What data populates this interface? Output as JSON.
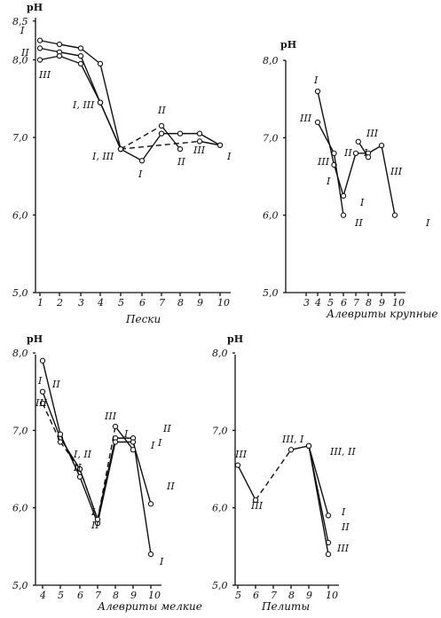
{
  "chart_data": [
    {
      "type": "line",
      "ylabel": "pH",
      "xlabel": "Пески",
      "x_ticks": [
        "1",
        "2",
        "3",
        "4",
        "5",
        "6",
        "7",
        "8",
        "9",
        "10"
      ],
      "y_ticks": [
        "5,0",
        "6,0",
        "7,0",
        "8,0",
        "8,5"
      ],
      "ylim": [
        5.0,
        8.5
      ],
      "xlim": [
        1,
        10
      ],
      "series": [
        {
          "name": "I",
          "x": [
            1,
            2,
            3,
            4,
            5,
            6,
            7,
            8,
            9,
            10
          ],
          "y": [
            8.25,
            8.2,
            8.15,
            7.95,
            6.85,
            6.7,
            7.05,
            7.05,
            7.05,
            6.9
          ]
        },
        {
          "name": "II",
          "x": [
            1,
            2,
            3,
            4,
            5,
            7,
            8
          ],
          "y": [
            8.15,
            8.1,
            8.05,
            7.45,
            6.85,
            7.15,
            6.85
          ]
        },
        {
          "name": "III",
          "x": [
            1,
            2,
            3,
            4,
            5,
            9,
            10
          ],
          "y": [
            8.0,
            8.05,
            7.95,
            7.45,
            6.85,
            6.95,
            6.9
          ]
        }
      ],
      "annotations": [
        "I",
        "II",
        "III",
        "I, III",
        "I, III",
        "II",
        "I",
        "II",
        "III",
        "I"
      ]
    },
    {
      "type": "line",
      "ylabel": "pH",
      "xlabel": "Алевриты крупные",
      "x_ticks": [
        "3",
        "4",
        "5",
        "6",
        "7",
        "8",
        "9",
        "10"
      ],
      "y_ticks": [
        "5,0",
        "6,0",
        "7,0",
        "8,0"
      ],
      "ylim": [
        5.0,
        8.0
      ],
      "xlim": [
        3,
        10
      ],
      "series": [
        {
          "name": "I",
          "x": [
            4,
            5.3,
            6,
            7,
            8,
            9,
            10
          ],
          "y": [
            7.6,
            6.65,
            6.25,
            6.8,
            6.8,
            6.9,
            6.0
          ]
        },
        {
          "name": "II",
          "x": [
            4,
            5.3,
            6
          ],
          "y": [
            7.2,
            6.8,
            6.0
          ]
        },
        {
          "name": "III",
          "x": [
            7.2,
            8
          ],
          "y": [
            6.95,
            6.75
          ]
        }
      ],
      "annotations": [
        "I",
        "III",
        "III",
        "II",
        "I",
        "I",
        "II",
        "III",
        "I",
        "III",
        "I"
      ]
    },
    {
      "type": "line",
      "ylabel": "pH",
      "xlabel": "Алевриты мелкие",
      "x_ticks": [
        "4",
        "5",
        "6",
        "7",
        "8",
        "9",
        "10"
      ],
      "y_ticks": [
        "5,0",
        "6,0",
        "7,0",
        "8,0"
      ],
      "ylim": [
        5.0,
        8.0
      ],
      "xlim": [
        4,
        10
      ],
      "series": [
        {
          "name": "I",
          "x": [
            4,
            5,
            6,
            7,
            8,
            9,
            10
          ],
          "y": [
            7.5,
            6.9,
            6.5,
            5.85,
            6.9,
            6.9,
            5.4
          ]
        },
        {
          "name": "II",
          "x": [
            4,
            5,
            6,
            7,
            8,
            9,
            10
          ],
          "y": [
            7.9,
            6.95,
            6.4,
            5.8,
            6.85,
            6.85,
            6.05
          ]
        },
        {
          "name": "III",
          "x": [
            4,
            5,
            6,
            7,
            8,
            9
          ],
          "y": [
            7.35,
            6.85,
            6.5,
            5.85,
            7.05,
            6.75
          ]
        }
      ],
      "annotations": [
        "I",
        "II",
        "III",
        "I, II",
        "II",
        "I",
        "II",
        "III",
        "I",
        "I",
        "II",
        "I",
        "II",
        "I"
      ]
    },
    {
      "type": "line",
      "ylabel": "pH",
      "xlabel": "Пелиты",
      "x_ticks": [
        "5",
        "6",
        "7",
        "8",
        "9",
        "10"
      ],
      "y_ticks": [
        "5,0",
        "6,0",
        "7,0",
        "8,0"
      ],
      "ylim": [
        5.0,
        8.0
      ],
      "xlim": [
        5,
        10
      ],
      "series": [
        {
          "name": "I",
          "x": [
            5,
            6,
            8,
            9,
            10
          ],
          "y": [
            6.55,
            6.1,
            6.75,
            6.8,
            5.9
          ]
        },
        {
          "name": "II",
          "x": [
            9,
            10
          ],
          "y": [
            6.8,
            5.55
          ]
        },
        {
          "name": "III",
          "x": [
            9,
            10
          ],
          "y": [
            6.8,
            5.4
          ]
        }
      ],
      "annotations": [
        "III",
        "III",
        "III, I",
        "III, II",
        "I",
        "II",
        "III"
      ]
    }
  ]
}
